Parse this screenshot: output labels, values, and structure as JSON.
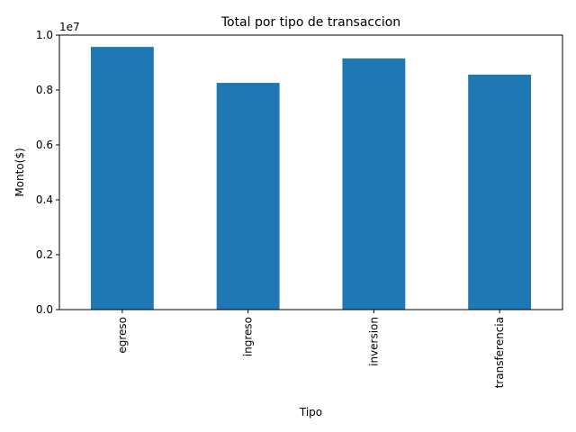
{
  "chart_data": {
    "type": "bar",
    "title": "Total por tipo de transaccion",
    "xlabel": "Tipo",
    "ylabel": "Monto($)",
    "offset_label": "1e7",
    "categories": [
      "egreso",
      "ingreso",
      "inversion",
      "transferencia"
    ],
    "values": [
      9570000,
      8260000,
      9150000,
      8560000
    ],
    "ylim": [
      0,
      10000000
    ],
    "yticks": [
      0,
      2000000,
      4000000,
      6000000,
      8000000,
      10000000
    ],
    "ytick_labels": [
      "0.0",
      "0.2",
      "0.4",
      "0.6",
      "0.8",
      "1.0"
    ],
    "grid": false,
    "legend": "none",
    "bar_color": "#1f77b4"
  }
}
